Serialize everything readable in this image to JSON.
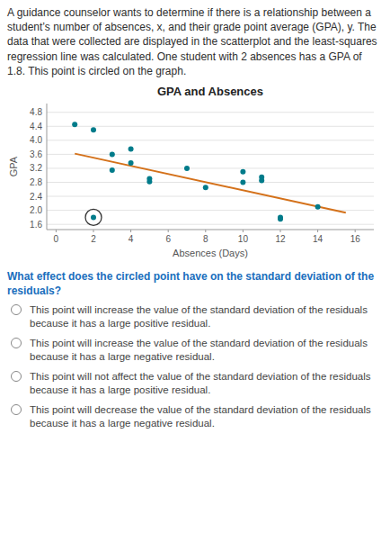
{
  "chart_data": {
    "type": "scatter",
    "title": "GPA and Absences",
    "xlabel": "Absences (Days)",
    "ylabel": "GPA",
    "series": [
      {
        "type": "scatter",
        "color": "#007b8a",
        "x": [
          1,
          2,
          3,
          3,
          4,
          4,
          5,
          5,
          7,
          8,
          10,
          10,
          11,
          11,
          12,
          14,
          12
        ],
        "values": [
          4.45,
          4.3,
          3.6,
          3.15,
          3.75,
          3.35,
          2.9,
          2.82,
          3.2,
          2.65,
          3.1,
          2.8,
          2.95,
          2.85,
          1.75,
          2.1,
          1.8
        ]
      },
      {
        "type": "scatter",
        "color": "#007b8a",
        "marker": "circled",
        "x": [
          2
        ],
        "values": [
          1.8
        ]
      },
      {
        "type": "line",
        "color": "#d4711a",
        "x": [
          1,
          15.5
        ],
        "values": [
          3.62,
          1.93
        ]
      }
    ],
    "xlim": [
      -0.5,
      17
    ],
    "ylim": [
      1.45,
      5.05
    ],
    "xticks": [
      0,
      2,
      4,
      6,
      8,
      10,
      12,
      14,
      16
    ],
    "yticks": [
      1.6,
      {
        "value": 2,
        "label": "2.0"
      },
      2.4,
      2.8,
      3.2,
      3.6,
      {
        "value": 4,
        "label": "4.0"
      },
      4.4,
      4.8
    ],
    "grid": "y",
    "annotations": [
      "A guidance counselor wants to determine if there is a relationship between a student’s number of absences, x, and their grade point average (GPA), y. The data that were collected are displayed in the scatterplot and the least-squares regression line was calculated. One student with 2 absences has a GPA of 1.8. This point is circled on the graph.",
      "What effect does the circled point have on the standard deviation of the residuals?",
      "This point will increase the value of the standard deviation of the residuals because it has a large positive residual.",
      "This point will increase the value of the standard deviation of the residuals because it has a large negative residual.",
      "This point will not affect the value of the standard deviation of the residuals because it has a large positive residual.",
      "This point will decrease the value of the standard deviation of the residuals because it has a large negative residual."
    ]
  }
}
